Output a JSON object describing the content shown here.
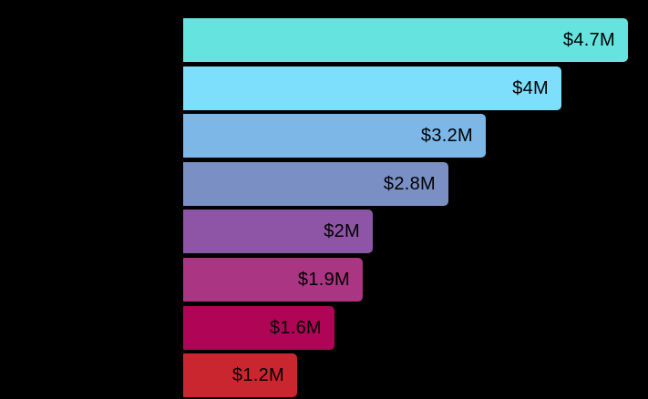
{
  "chart_data": {
    "type": "bar",
    "orientation": "horizontal",
    "title": "",
    "xlabel": "",
    "ylabel": "",
    "values": [
      4.7,
      4.0,
      3.2,
      2.8,
      2.0,
      1.9,
      1.6,
      1.2
    ],
    "value_labels": [
      "$4.7M",
      "$4M",
      "$3.2M",
      "$2.8M",
      "$2M",
      "$1.9M",
      "$1.6M",
      "$1.2M"
    ],
    "bar_colors": [
      "#65E3DF",
      "#7EDFFD",
      "#7CB7E8",
      "#7A90C4",
      "#8E54A5",
      "#AA3583",
      "#B00457",
      "#CA262F"
    ],
    "xlim": [
      0,
      4.91
    ],
    "grid": false,
    "legend": false,
    "background_color": "#000000",
    "value_label_color": "#000000",
    "value_label_position": "inside-end"
  }
}
